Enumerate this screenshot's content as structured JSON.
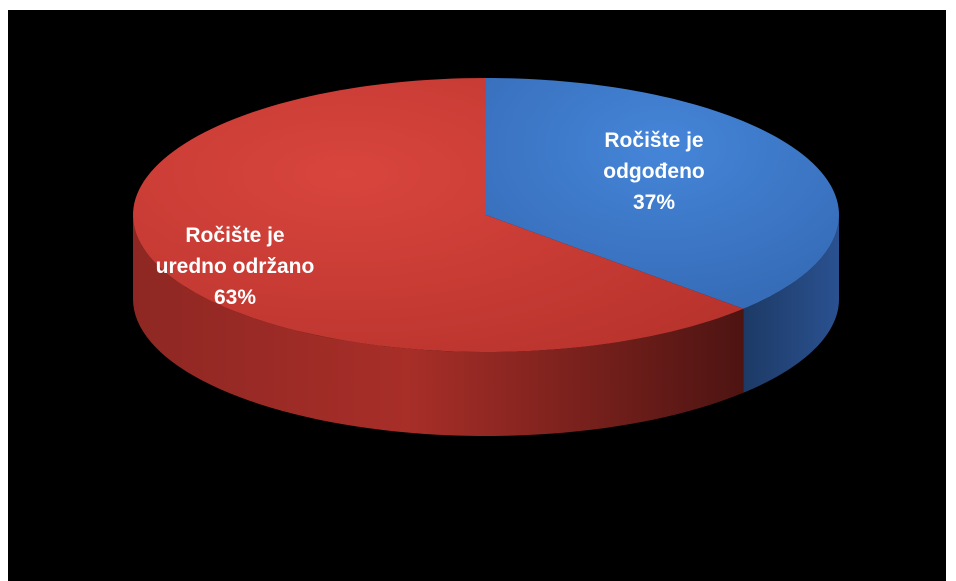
{
  "chart_data": {
    "type": "pie",
    "style": "3d",
    "slices": [
      {
        "label_lines": [
          "Ročište je",
          "odgođeno"
        ],
        "value": 37,
        "value_label": "37%",
        "color": "#3b78c9",
        "side_color": "#1f4478"
      },
      {
        "label_lines": [
          "Ročište je",
          "uredno održano"
        ],
        "value": 63,
        "value_label": "63%",
        "color": "#c83a33",
        "side_color": "#7e211d"
      }
    ],
    "background": "#000000"
  }
}
